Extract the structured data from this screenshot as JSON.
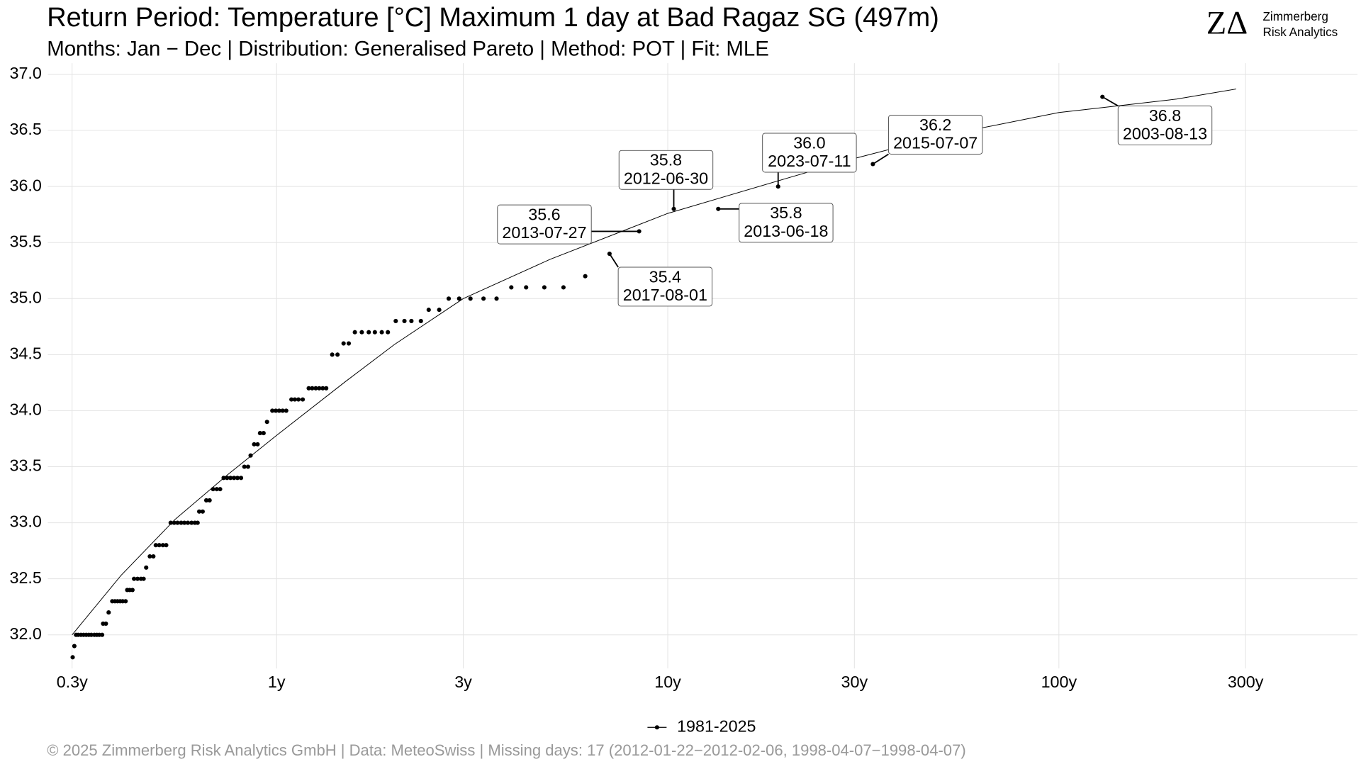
{
  "chart_data": {
    "type": "scatter",
    "title": "Return Period: Temperature [°C] Maximum 1 day at Bad Ragaz  SG (497m)",
    "subtitle": "Months: Jan − Dec | Distribution: Generalised Pareto | Method: POT | Fit: MLE",
    "logo": {
      "mark": "ZΔ",
      "line1": "Zimmerberg",
      "line2": "Risk Analytics"
    },
    "footer": "©  2025 Zimmerberg Risk Analytics GmbH | Data: MeteoSwiss | Missing days: 17 (2012-01-22−2012-02-06, 1998-04-07−1998-04-07)",
    "x_log": true,
    "grid": true,
    "legend": "bottom",
    "xlim": [
      0.26,
      580
    ],
    "xticks": [
      {
        "value": 0.3,
        "label": "0.3y"
      },
      {
        "value": 1,
        "label": "1y"
      },
      {
        "value": 3,
        "label": "3y"
      },
      {
        "value": 10,
        "label": "10y"
      },
      {
        "value": 30,
        "label": "30y"
      },
      {
        "value": 100,
        "label": "100y"
      },
      {
        "value": 300,
        "label": "300y"
      }
    ],
    "ylim": [
      31.7,
      37.1
    ],
    "yticks": [
      {
        "value": 32,
        "label": "32.0"
      },
      32.5,
      {
        "value": 33,
        "label": "33.0"
      },
      33.5,
      {
        "value": 34,
        "label": "34.0"
      },
      34.5,
      {
        "value": 35,
        "label": "35.0"
      },
      35.5,
      {
        "value": 36,
        "label": "36.0"
      },
      36.5,
      {
        "value": 37,
        "label": "37.0"
      }
    ],
    "series": [
      {
        "name": "1981-2025",
        "color": "#000000",
        "x": [
          0.301,
          0.304,
          0.307,
          0.311,
          0.316,
          0.321,
          0.326,
          0.331,
          0.336,
          0.342,
          0.347,
          0.352,
          0.358,
          0.36,
          0.366,
          0.372,
          0.38,
          0.386,
          0.392,
          0.398,
          0.404,
          0.411,
          0.415,
          0.421,
          0.428,
          0.432,
          0.441,
          0.45,
          0.457,
          0.464,
          0.474,
          0.484,
          0.491,
          0.501,
          0.512,
          0.522,
          0.536,
          0.547,
          0.558,
          0.57,
          0.581,
          0.593,
          0.606,
          0.618,
          0.628,
          0.634,
          0.647,
          0.661,
          0.674,
          0.688,
          0.703,
          0.717,
          0.732,
          0.747,
          0.762,
          0.778,
          0.794,
          0.811,
          0.827,
          0.845,
          0.858,
          0.876,
          0.894,
          0.907,
          0.926,
          0.945,
          0.975,
          0.995,
          1.015,
          1.036,
          1.058,
          1.091,
          1.113,
          1.137,
          1.166,
          1.208,
          1.233,
          1.259,
          1.285,
          1.312,
          1.339,
          1.387,
          1.431,
          1.483,
          1.529,
          1.585,
          1.651,
          1.72,
          1.783,
          1.857,
          1.925,
          2.016,
          2.122,
          2.211,
          2.338,
          2.448,
          2.604,
          2.754,
          2.929,
          3.13,
          3.38,
          3.65,
          3.981,
          4.344,
          4.835,
          5.412,
          6.152,
          7.097,
          8.448,
          10.36,
          13.46,
          19.15,
          33.45,
          129.2
        ],
        "values": [
          31.8,
          31.9,
          32.0,
          32.0,
          32.0,
          32.0,
          32.0,
          32.0,
          32.0,
          32.0,
          32.0,
          32.0,
          32.0,
          32.1,
          32.1,
          32.2,
          32.3,
          32.3,
          32.3,
          32.3,
          32.3,
          32.3,
          32.4,
          32.4,
          32.4,
          32.5,
          32.5,
          32.5,
          32.5,
          32.6,
          32.7,
          32.7,
          32.8,
          32.8,
          32.8,
          32.8,
          33.0,
          33.0,
          33.0,
          33.0,
          33.0,
          33.0,
          33.0,
          33.0,
          33.0,
          33.1,
          33.1,
          33.2,
          33.2,
          33.3,
          33.3,
          33.3,
          33.4,
          33.4,
          33.4,
          33.4,
          33.4,
          33.4,
          33.5,
          33.5,
          33.6,
          33.7,
          33.7,
          33.8,
          33.8,
          33.9,
          34.0,
          34.0,
          34.0,
          34.0,
          34.0,
          34.1,
          34.1,
          34.1,
          34.1,
          34.2,
          34.2,
          34.2,
          34.2,
          34.2,
          34.2,
          34.5,
          34.5,
          34.6,
          34.6,
          34.7,
          34.7,
          34.7,
          34.7,
          34.7,
          34.7,
          34.8,
          34.8,
          34.8,
          34.8,
          34.9,
          34.9,
          35.0,
          35.0,
          35.0,
          35.0,
          35.0,
          35.1,
          35.1,
          35.1,
          35.1,
          35.2,
          35.4,
          35.6,
          35.8,
          35.8,
          36.0,
          36.2,
          36.8
        ]
      }
    ],
    "fit": {
      "color": "#000000",
      "x": [
        0.3,
        0.4,
        0.55,
        0.75,
        1,
        1.5,
        2,
        3,
        5,
        10,
        20,
        30,
        50,
        100,
        200,
        284
      ],
      "y": [
        32.0,
        32.53,
        33.03,
        33.43,
        33.78,
        34.26,
        34.59,
        35.0,
        35.35,
        35.76,
        36.07,
        36.25,
        36.45,
        36.66,
        36.78,
        36.87
      ]
    },
    "annotations": [
      {
        "x": 7.097,
        "y": 35.4,
        "text": "35.4",
        "date": "2017-08-01"
      },
      {
        "x": 8.448,
        "y": 35.6,
        "text": "35.6",
        "date": "2013-07-27"
      },
      {
        "x": 10.36,
        "y": 35.8,
        "text": "35.8",
        "date": "2012-06-30"
      },
      {
        "x": 13.46,
        "y": 35.8,
        "text": "35.8",
        "date": "2013-06-18"
      },
      {
        "x": 19.15,
        "y": 36.0,
        "text": "36.0",
        "date": "2023-07-11"
      },
      {
        "x": 33.45,
        "y": 36.2,
        "text": "36.2",
        "date": "2015-07-07"
      },
      {
        "x": 129.2,
        "y": 36.8,
        "text": "36.8",
        "date": "2003-08-13"
      }
    ]
  }
}
